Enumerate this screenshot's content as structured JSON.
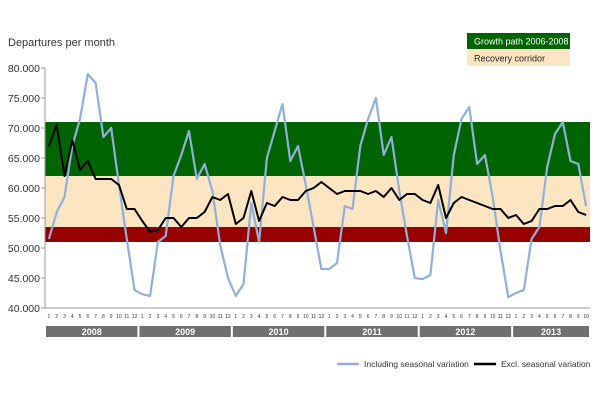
{
  "chart_data": {
    "type": "line",
    "ylabel": "Departures per month",
    "ylim": [
      40000,
      80000
    ],
    "y_ticks": [
      "40.000",
      "45.000",
      "50.000",
      "55.000",
      "60.000",
      "65.000",
      "70.000",
      "75.000",
      "80.000"
    ],
    "years": [
      {
        "label": "2008",
        "months": 12
      },
      {
        "label": "2009",
        "months": 12
      },
      {
        "label": "2010",
        "months": 12
      },
      {
        "label": "2011",
        "months": 12
      },
      {
        "label": "2012",
        "months": 12
      },
      {
        "label": "2013",
        "months": 10
      }
    ],
    "zones": [
      {
        "name": "Growth path 2006-2008",
        "from": 62000,
        "to": 71000,
        "color": "#006400"
      },
      {
        "name": "Recovery corridor",
        "from": 53500,
        "to": 62000,
        "color": "#fde5c2"
      },
      {
        "name": "",
        "from": 51000,
        "to": 53500,
        "color": "#990000"
      }
    ],
    "legend_zones": [
      {
        "label": "Growth path 2006-2008",
        "color": "#006400",
        "text_color": "#ffffff"
      },
      {
        "label": "Recovery corridor",
        "color": "#fde5c2",
        "text_color": "#222222"
      }
    ],
    "series": [
      {
        "name": "Including seasonal variation",
        "color": "#8fb0db",
        "values": [
          51500,
          56000,
          58500,
          67000,
          71500,
          79000,
          77500,
          68500,
          70000,
          60500,
          51500,
          43000,
          42300,
          42000,
          51000,
          52000,
          62000,
          65500,
          69500,
          61500,
          64000,
          59500,
          50500,
          45000,
          42000,
          44000,
          57500,
          51000,
          65000,
          69500,
          74000,
          64500,
          67000,
          60500,
          53500,
          46500,
          46500,
          47500,
          57000,
          56500,
          67000,
          71500,
          75000,
          65500,
          68500,
          59500,
          52000,
          45000,
          44800,
          45500,
          58000,
          52500,
          65500,
          71500,
          73500,
          64000,
          65500,
          58500,
          49500,
          41800,
          42500,
          43000,
          51500,
          53500,
          63500,
          69000,
          71000,
          64500,
          64000,
          57000
        ]
      },
      {
        "name": "Excl. seasonal variation",
        "color": "#000000",
        "values": [
          67000,
          70500,
          62000,
          68000,
          63000,
          64500,
          61500,
          61500,
          61500,
          60500,
          56500,
          56500,
          54500,
          52700,
          53000,
          55000,
          55000,
          53500,
          55000,
          55000,
          56000,
          58500,
          58000,
          59000,
          54000,
          55000,
          59500,
          54500,
          57500,
          57000,
          58500,
          58000,
          58000,
          59500,
          60000,
          61000,
          60000,
          59000,
          59500,
          59500,
          59500,
          59000,
          59500,
          58500,
          60000,
          58000,
          59000,
          59000,
          58000,
          57500,
          60500,
          55000,
          57500,
          58500,
          58000,
          57500,
          57000,
          56500,
          56500,
          55000,
          55500,
          54000,
          54500,
          56500,
          56500,
          57000,
          57000,
          58000,
          56000,
          55500
        ]
      }
    ]
  }
}
